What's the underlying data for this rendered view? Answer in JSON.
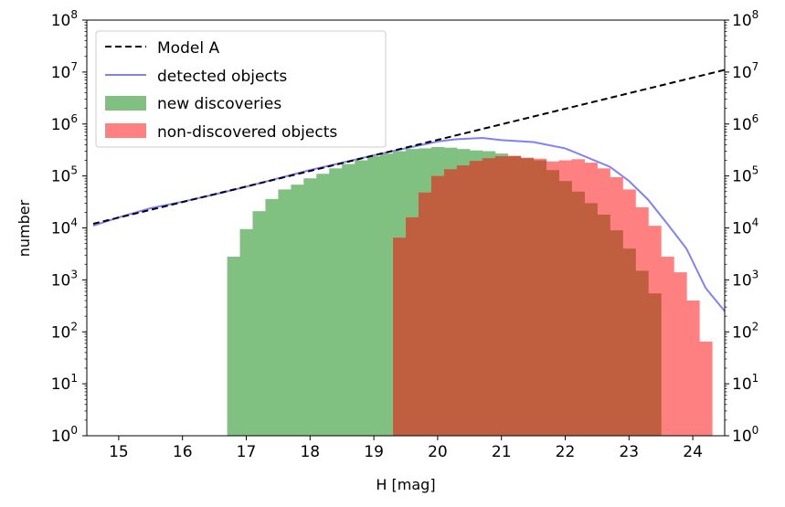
{
  "chart_data": {
    "type": "bar",
    "title": "",
    "xlabel": "H [mag]",
    "ylabel": "number",
    "xlim": [
      14.5,
      24.5
    ],
    "ylim_log10": [
      0,
      8
    ],
    "yscale": "log",
    "grid": false,
    "legend_position": "top-left",
    "x_ticks": [
      "15",
      "16",
      "17",
      "18",
      "19",
      "20",
      "21",
      "22",
      "23",
      "24"
    ],
    "x_tick_values": [
      15,
      16,
      17,
      18,
      19,
      20,
      21,
      22,
      23,
      24
    ],
    "y_tick_exponents": [
      "0",
      "1",
      "2",
      "3",
      "4",
      "5",
      "6",
      "7",
      "8"
    ],
    "y_tick_base": "10",
    "legend": [
      "Model A",
      "detected objects",
      "new discoveries",
      "non-discovered objects"
    ],
    "colors": {
      "model": "#000000",
      "detected": "#8080ff",
      "new": "#80c080",
      "non": "#ff8080",
      "overlap": "#c05f40"
    },
    "bin_width": 0.2,
    "series": [
      {
        "name": "Model A",
        "style": "dashed-line",
        "x": [
          14.6,
          24.5
        ],
        "y": [
          12000,
          11000000
        ]
      },
      {
        "name": "detected objects",
        "style": "line",
        "x": [
          14.6,
          15.0,
          15.5,
          16.0,
          16.5,
          17.0,
          17.5,
          18.0,
          18.5,
          19.0,
          19.5,
          20.0,
          20.3,
          20.7,
          21.0,
          21.5,
          22.0,
          22.3,
          22.7,
          23.0,
          23.3,
          23.6,
          23.9,
          24.2,
          24.5
        ],
        "y": [
          11000,
          16000,
          24000,
          32000,
          44000,
          62000,
          90000,
          130000,
          180000,
          250000,
          340000,
          460000,
          510000,
          540000,
          490000,
          450000,
          340000,
          240000,
          150000,
          80000,
          35000,
          12000,
          4000,
          700,
          250
        ]
      },
      {
        "name": "new discoveries",
        "style": "histogram",
        "bins_start": [
          16.7,
          16.9,
          17.1,
          17.3,
          17.5,
          17.7,
          17.9,
          18.1,
          18.3,
          18.5,
          18.7,
          18.9,
          19.1,
          19.3,
          19.5,
          19.7,
          19.9,
          20.1,
          20.3,
          20.5,
          20.7,
          20.9,
          21.1,
          21.3,
          21.5,
          21.7,
          21.9,
          22.1,
          22.3,
          22.5,
          22.7,
          22.9,
          23.1,
          23.3,
          23.5,
          23.7
        ],
        "values": [
          2800,
          9500,
          21000,
          36000,
          55000,
          68000,
          90000,
          110000,
          140000,
          170000,
          200000,
          240000,
          270000,
          300000,
          330000,
          340000,
          360000,
          350000,
          330000,
          310000,
          300000,
          270000,
          240000,
          220000,
          200000,
          130000,
          80000,
          50000,
          30000,
          18000,
          9000,
          4000,
          1500,
          550,
          0,
          0
        ]
      },
      {
        "name": "non-discovered objects",
        "style": "histogram",
        "bins_start": [
          19.3,
          19.5,
          19.7,
          19.9,
          20.1,
          20.3,
          20.5,
          20.7,
          20.9,
          21.1,
          21.3,
          21.5,
          21.7,
          21.9,
          22.1,
          22.3,
          22.5,
          22.7,
          22.9,
          23.1,
          23.3,
          23.5,
          23.7,
          23.9,
          24.1
        ],
        "values": [
          6500,
          16000,
          48000,
          100000,
          135000,
          160000,
          195000,
          220000,
          240000,
          245000,
          225000,
          215000,
          190000,
          200000,
          210000,
          180000,
          140000,
          95000,
          55000,
          25000,
          11000,
          2800,
          1400,
          400,
          65
        ]
      }
    ]
  }
}
